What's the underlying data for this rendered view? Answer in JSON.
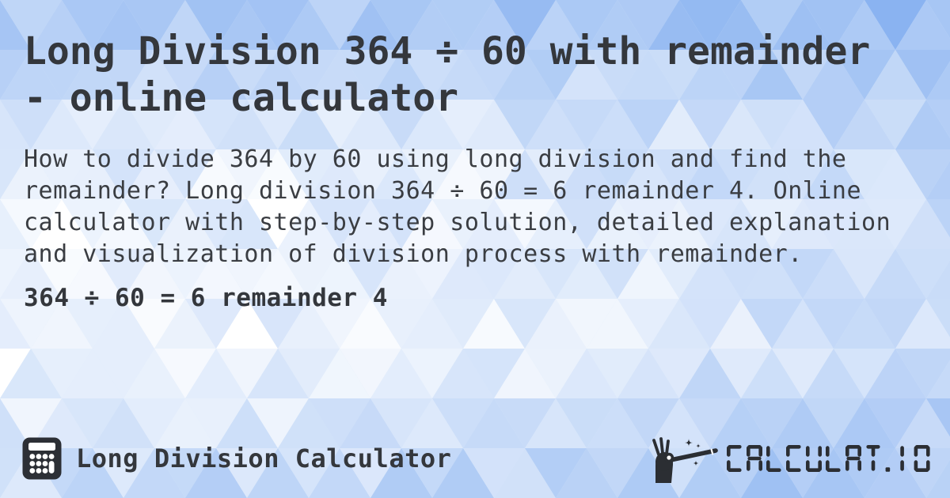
{
  "page": {
    "title": "Long Division 364 ÷ 60 with remainder - online calculator",
    "description": "How to divide 364 by 60 using long division and find the remainder? Long division 364 ÷ 60 = 6 remainder 4. Online calculator with step-by-step solution, detailed explanation and visualization of division process with remainder.",
    "result": "364 ÷ 60 = 6 remainder 4"
  },
  "footer": {
    "app_label": "Long Division Calculator",
    "brand_text": "CALCULAT.IO",
    "app_icon": "calculator-icon",
    "brand_icon": "magic-wand-icon"
  },
  "colors": {
    "text": "#34373c",
    "body_text": "#3a3d42",
    "icon": "#2c2f35",
    "segment": "#2b2e33",
    "bg_top_blue": "#9cc0f0",
    "bg_center_white": "#f4f8fd",
    "bg_bottom_blue": "#c9ddf6"
  }
}
